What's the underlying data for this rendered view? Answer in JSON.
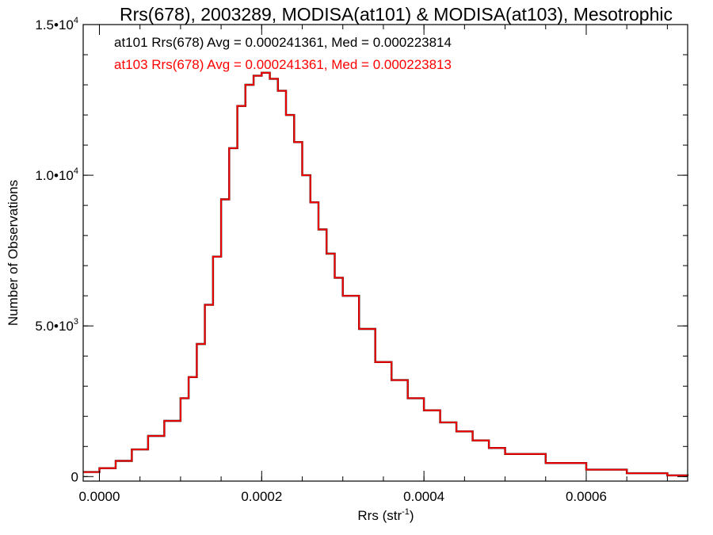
{
  "chart_data": {
    "type": "histogram",
    "title": "Rrs(678), 2003289, MODISA(at101) & MODISA(at103), Mesotrophic",
    "xlabel": {
      "base": "Rrs (str",
      "sup": "-1",
      "close": ")"
    },
    "ylabel": "Number of Observations",
    "xlim": [
      -2e-05,
      0.000725
    ],
    "ylim": [
      -150,
      15000
    ],
    "x_ticks": [
      {
        "value": 0.0,
        "label": "0.0000"
      },
      {
        "value": 0.0002,
        "label": "0.0002"
      },
      {
        "value": 0.0004,
        "label": "0.0004"
      },
      {
        "value": 0.0006,
        "label": "0.0006"
      }
    ],
    "x_minor_step": 5e-05,
    "y_ticks": [
      {
        "value": 0,
        "label": "0",
        "exp": ""
      },
      {
        "value": 5000,
        "label": "5.0•10",
        "exp": "3"
      },
      {
        "value": 10000,
        "label": "1.0•10",
        "exp": "4"
      },
      {
        "value": 15000,
        "label": "1.5•10",
        "exp": "4"
      }
    ],
    "y_minor_step": 1000,
    "grid": false,
    "colors": {
      "axes": "#000000",
      "at101": "#000000",
      "at103": "#ff0000"
    },
    "annotations": [
      {
        "text": "at101 Rrs(678) Avg = 0.000241361, Med = 0.000223814",
        "color": "#000000"
      },
      {
        "text": "at103 Rrs(678) Avg = 0.000241361, Med = 0.000223813",
        "color": "#ff0000"
      }
    ],
    "series": [
      {
        "name": "MODISA(at101)",
        "color": "#000000",
        "x": [
          -2e-05,
          0.0,
          2e-05,
          4e-05,
          6e-05,
          8e-05,
          0.0001,
          0.00011,
          0.00012,
          0.00013,
          0.00014,
          0.00015,
          0.00016,
          0.00017,
          0.00018,
          0.00019,
          0.0002,
          0.00021,
          0.00022,
          0.00023,
          0.00024,
          0.00025,
          0.00026,
          0.00027,
          0.00028,
          0.00029,
          0.0003,
          0.00032,
          0.00034,
          0.00036,
          0.00038,
          0.0004,
          0.00042,
          0.00044,
          0.00046,
          0.00048,
          0.0005,
          0.00055,
          0.0006,
          0.00065,
          0.0007,
          0.000725
        ],
        "y": [
          150,
          280,
          520,
          900,
          1350,
          1850,
          2600,
          3300,
          4400,
          5700,
          7300,
          9200,
          10900,
          12300,
          13000,
          13300,
          13400,
          13200,
          12800,
          12000,
          11100,
          10000,
          9100,
          8200,
          7400,
          6600,
          6000,
          4900,
          3800,
          3200,
          2600,
          2200,
          1800,
          1500,
          1200,
          950,
          750,
          450,
          230,
          110,
          40,
          20
        ]
      },
      {
        "name": "MODISA(at103)",
        "color": "#ff0000",
        "x": [
          -2e-05,
          0.0,
          2e-05,
          4e-05,
          6e-05,
          8e-05,
          0.0001,
          0.00011,
          0.00012,
          0.00013,
          0.00014,
          0.00015,
          0.00016,
          0.00017,
          0.00018,
          0.00019,
          0.0002,
          0.00021,
          0.00022,
          0.00023,
          0.00024,
          0.00025,
          0.00026,
          0.00027,
          0.00028,
          0.00029,
          0.0003,
          0.00032,
          0.00034,
          0.00036,
          0.00038,
          0.0004,
          0.00042,
          0.00044,
          0.00046,
          0.00048,
          0.0005,
          0.00055,
          0.0006,
          0.00065,
          0.0007,
          0.000725
        ],
        "y": [
          150,
          280,
          520,
          900,
          1350,
          1850,
          2600,
          3300,
          4400,
          5700,
          7300,
          9200,
          10900,
          12300,
          13000,
          13300,
          13400,
          13200,
          12800,
          12000,
          11100,
          10000,
          9100,
          8200,
          7400,
          6600,
          6000,
          4900,
          3800,
          3200,
          2600,
          2200,
          1800,
          1500,
          1200,
          950,
          750,
          450,
          230,
          110,
          40,
          20
        ]
      }
    ]
  }
}
